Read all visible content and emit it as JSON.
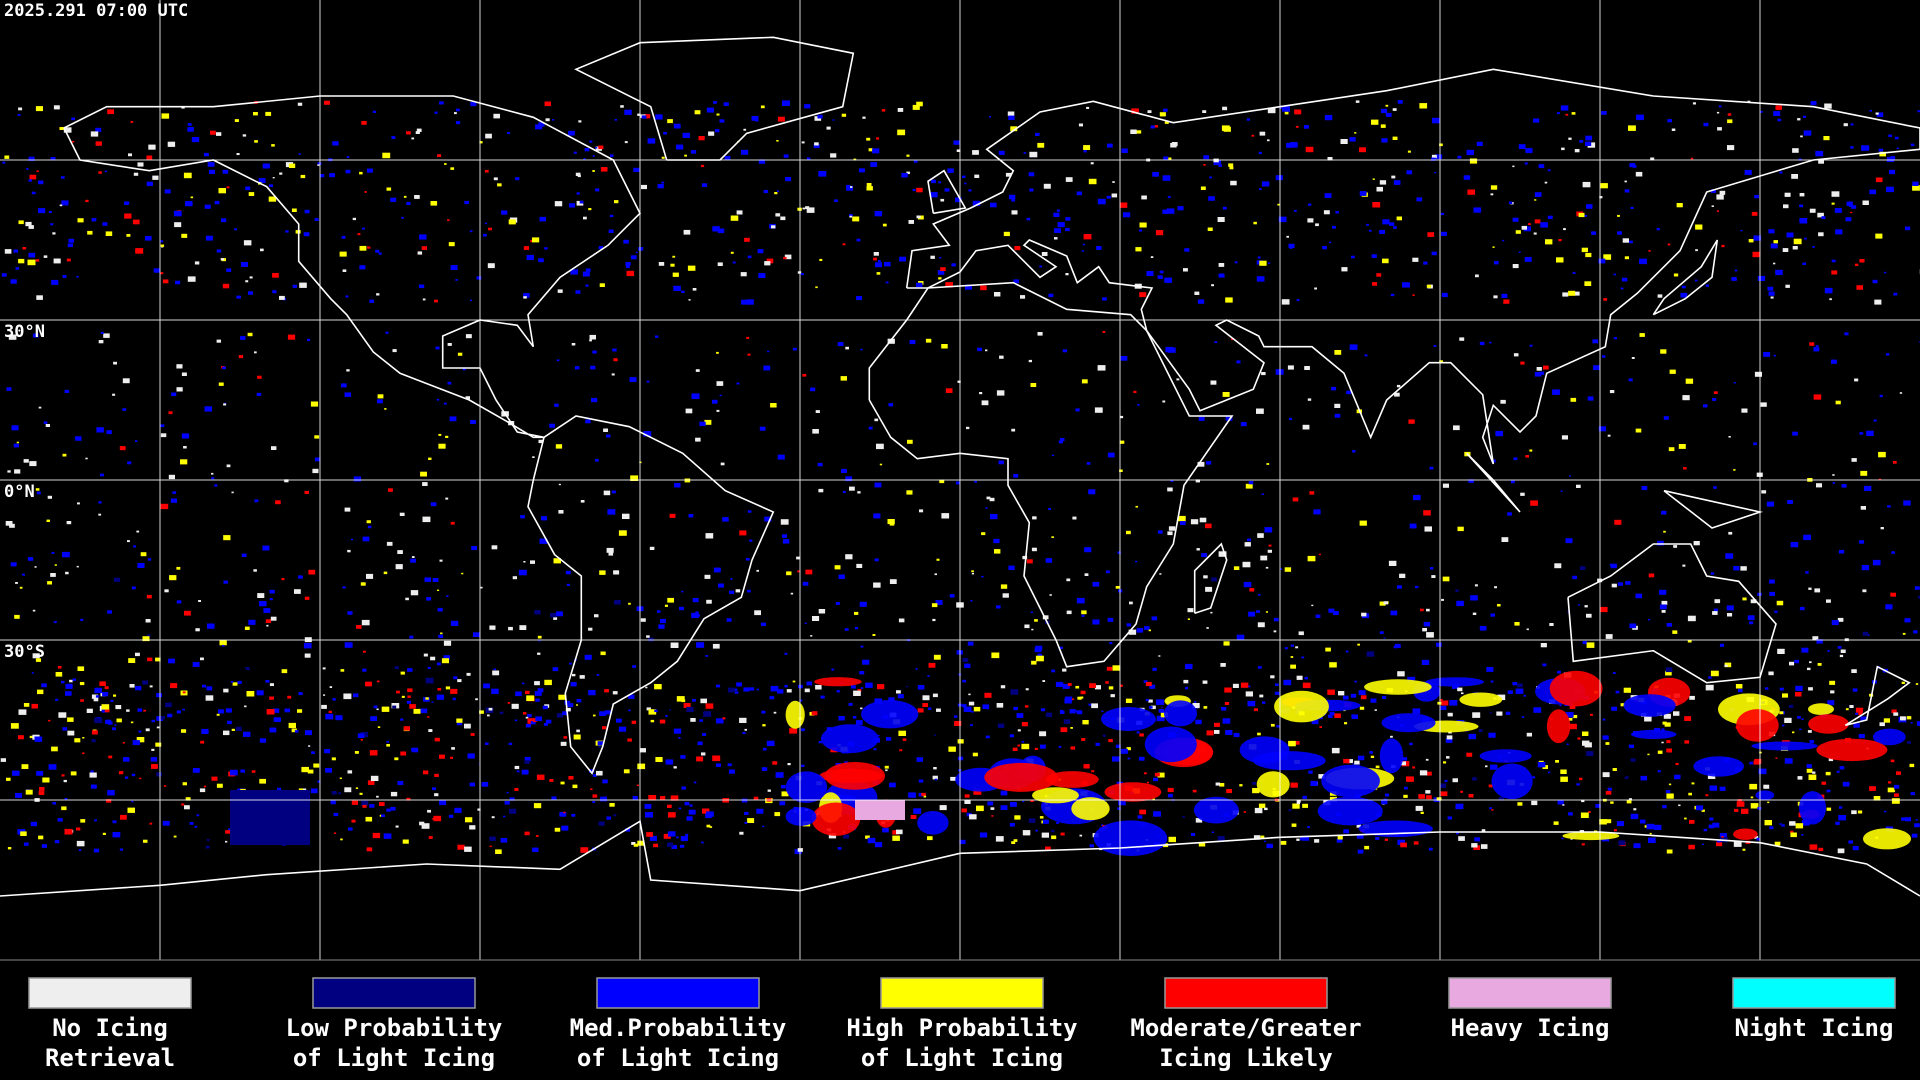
{
  "header": {
    "timestamp": "2025.291 07:00 UTC"
  },
  "map": {
    "latitude_labels": [
      "30°N",
      "0°N",
      "30°S"
    ]
  },
  "legend": {
    "items": [
      {
        "label_lines": [
          "No Icing",
          "Retrieval"
        ],
        "color": "#eeeeee"
      },
      {
        "label_lines": [
          "Low Probability",
          "of Light Icing"
        ],
        "color": "#000080"
      },
      {
        "label_lines": [
          "Med.Probability",
          "of Light Icing"
        ],
        "color": "#0000ff"
      },
      {
        "label_lines": [
          "High Probability",
          "of Light Icing"
        ],
        "color": "#ffff00"
      },
      {
        "label_lines": [
          "Moderate/Greater",
          "Icing Likely"
        ],
        "color": "#ff0000"
      },
      {
        "label_lines": [
          "Heavy Icing"
        ],
        "color": "#e8a8e0"
      },
      {
        "label_lines": [
          "Night Icing"
        ],
        "color": "#00ffff"
      }
    ]
  }
}
